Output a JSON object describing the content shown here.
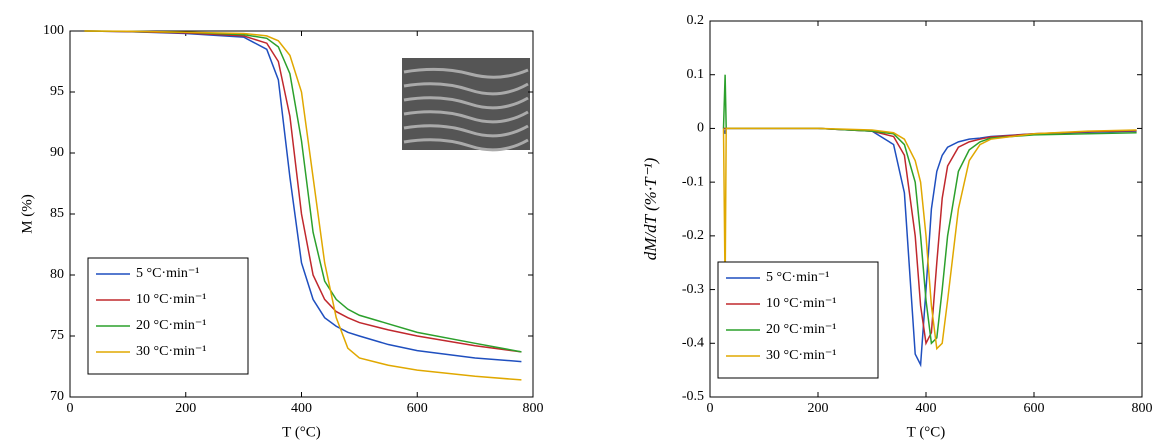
{
  "chart_data": [
    {
      "type": "line",
      "xlabel": "T (°C)",
      "ylabel": "M (%)",
      "x": [
        25,
        100,
        200,
        300,
        340,
        360,
        380,
        400,
        420,
        440,
        460,
        480,
        500,
        550,
        600,
        700,
        780
      ],
      "series": [
        {
          "name": "5 °C·min⁻¹",
          "color": "#1f4fbf",
          "values": [
            100,
            99.95,
            99.8,
            99.5,
            98.5,
            96,
            88,
            81,
            78,
            76.5,
            75.8,
            75.3,
            75,
            74.3,
            73.8,
            73.2,
            72.9
          ]
        },
        {
          "name": "10 °C·min⁻¹",
          "color": "#c0282d",
          "values": [
            100,
            99.95,
            99.85,
            99.6,
            99,
            97.5,
            93,
            85,
            80,
            78,
            77,
            76.5,
            76.1,
            75.5,
            75,
            74.2,
            73.7
          ]
        },
        {
          "name": "20 °C·min⁻¹",
          "color": "#2ca02c",
          "values": [
            100,
            99.97,
            99.9,
            99.7,
            99.4,
            98.7,
            96.5,
            91,
            83.5,
            79.5,
            78,
            77.2,
            76.7,
            76,
            75.3,
            74.4,
            73.7
          ]
        },
        {
          "name": "30 °C·min⁻¹",
          "color": "#e0a800",
          "values": [
            100,
            99.98,
            99.9,
            99.8,
            99.6,
            99.2,
            98,
            95,
            88,
            81,
            76.5,
            74,
            73.2,
            72.6,
            72.2,
            71.7,
            71.4
          ]
        }
      ],
      "xlim": [
        0,
        800
      ],
      "xticks": [
        0,
        200,
        400,
        600,
        800
      ],
      "ylim": [
        70,
        100
      ],
      "yticks": [
        70,
        75,
        80,
        85,
        90,
        95,
        100
      ],
      "legend": "lower left",
      "grid": false
    },
    {
      "type": "line",
      "xlabel": "T (°C)",
      "ylabel": "dM/dT (%·T⁻¹)",
      "x": [
        25,
        28,
        30,
        35,
        100,
        200,
        300,
        340,
        360,
        380,
        390,
        400,
        410,
        420,
        430,
        440,
        460,
        480,
        500,
        520,
        600,
        700,
        790
      ],
      "series": [
        {
          "name": "5 °C·min⁻¹",
          "color": "#1f4fbf",
          "values": [
            0,
            -0.01,
            0,
            0,
            0,
            0,
            -0.005,
            -0.03,
            -0.12,
            -0.42,
            -0.44,
            -0.3,
            -0.15,
            -0.08,
            -0.05,
            -0.035,
            -0.025,
            -0.02,
            -0.018,
            -0.015,
            -0.01,
            -0.007,
            -0.005
          ]
        },
        {
          "name": "10 °C·min⁻¹",
          "color": "#c0282d",
          "values": [
            0,
            0,
            0,
            0,
            0,
            0,
            -0.005,
            -0.015,
            -0.05,
            -0.2,
            -0.33,
            -0.4,
            -0.38,
            -0.25,
            -0.13,
            -0.07,
            -0.035,
            -0.025,
            -0.02,
            -0.016,
            -0.01,
            -0.006,
            -0.004
          ]
        },
        {
          "name": "20 °C·min⁻¹",
          "color": "#2ca02c",
          "values": [
            0,
            0.1,
            0,
            0,
            0,
            0,
            -0.005,
            -0.01,
            -0.03,
            -0.1,
            -0.2,
            -0.32,
            -0.4,
            -0.39,
            -0.3,
            -0.2,
            -0.08,
            -0.04,
            -0.025,
            -0.018,
            -0.012,
            -0.01,
            -0.008
          ]
        },
        {
          "name": "30 °C·min⁻¹",
          "color": "#e0a800",
          "values": [
            0,
            -0.3,
            0,
            0,
            0,
            0,
            -0.003,
            -0.008,
            -0.02,
            -0.06,
            -0.1,
            -0.2,
            -0.33,
            -0.41,
            -0.4,
            -0.32,
            -0.15,
            -0.06,
            -0.03,
            -0.02,
            -0.01,
            -0.005,
            -0.003
          ]
        }
      ],
      "xlim": [
        0,
        800
      ],
      "xticks": [
        0,
        200,
        400,
        600,
        800
      ],
      "ylim": [
        -0.5,
        0.2
      ],
      "yticks": [
        -0.5,
        -0.4,
        -0.3,
        -0.2,
        -0.1,
        0,
        0.1,
        0.2
      ],
      "legend": "lower left",
      "grid": false
    }
  ]
}
